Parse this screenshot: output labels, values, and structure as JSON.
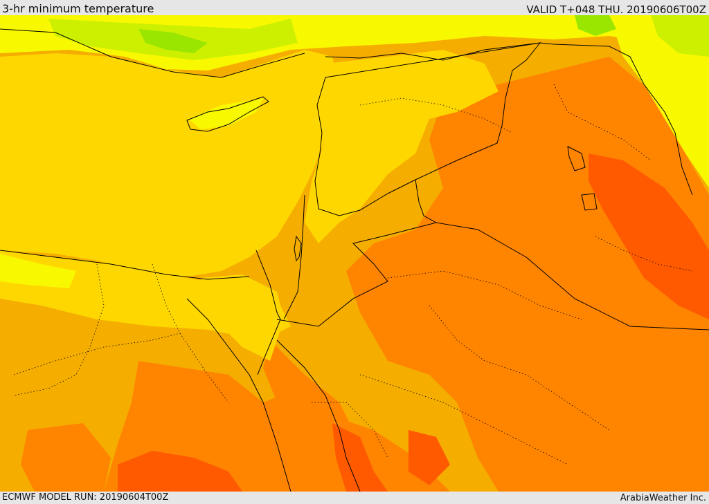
{
  "header": {
    "title": "3-hr minimum temperature",
    "valid": "VALID T+048 THU. 20190606T00Z"
  },
  "footer": {
    "model_run": "ECMWF MODEL RUN: 20190604T00Z",
    "credit": "ArabiaWeather Inc."
  },
  "palette": {
    "coolest": "#9be600",
    "cool": "#ccf000",
    "mild": "#f8f800",
    "warm": "#ffd700",
    "warmer": "#f5ad00",
    "hot": "#ff8400",
    "hottest": "#ff5a00",
    "border_line": "#000000"
  }
}
